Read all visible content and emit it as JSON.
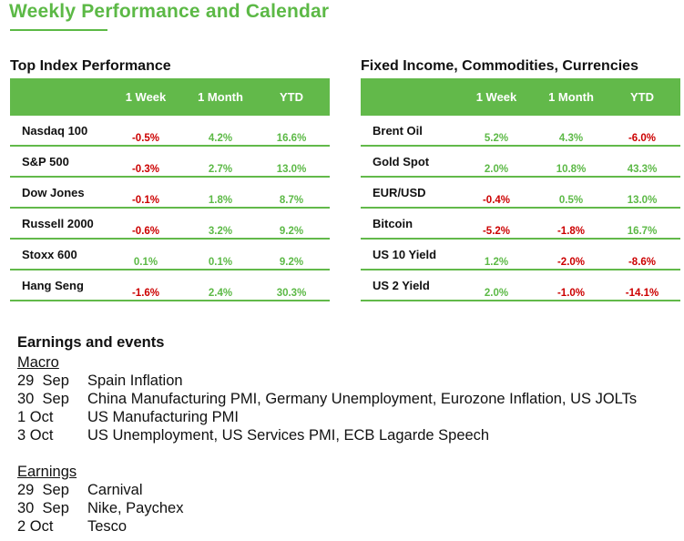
{
  "title": "Weekly Performance and Calendar",
  "colors": {
    "accent": "#62b94a",
    "positive": "#5cb946",
    "negative": "#cc0000"
  },
  "index_table": {
    "heading": "Top Index Performance",
    "columns": [
      "1 Week",
      "1 Month",
      "YTD"
    ],
    "rows": [
      {
        "name": "Nasdaq 100",
        "values": [
          "-0.5%",
          "4.2%",
          "16.6%"
        ]
      },
      {
        "name": "S&P 500",
        "values": [
          "-0.3%",
          "2.7%",
          "13.0%"
        ]
      },
      {
        "name": "Dow Jones",
        "values": [
          "-0.1%",
          "1.8%",
          "8.7%"
        ]
      },
      {
        "name": "Russell 2000",
        "values": [
          "-0.6%",
          "3.2%",
          "9.2%"
        ]
      },
      {
        "name": "Stoxx 600",
        "values": [
          "0.1%",
          "0.1%",
          "9.2%"
        ]
      },
      {
        "name": "Hang Seng",
        "values": [
          "-1.6%",
          "2.4%",
          "30.3%"
        ]
      }
    ]
  },
  "ficc_table": {
    "heading": "Fixed Income, Commodities, Currencies",
    "columns": [
      "1 Week",
      "1 Month",
      "YTD"
    ],
    "rows": [
      {
        "name": "Brent Oil",
        "values": [
          "5.2%",
          "4.3%",
          "-6.0%"
        ]
      },
      {
        "name": "Gold Spot",
        "values": [
          "2.0%",
          "10.8%",
          "43.3%"
        ]
      },
      {
        "name": "EUR/USD",
        "values": [
          "-0.4%",
          "0.5%",
          "13.0%"
        ]
      },
      {
        "name": "Bitcoin",
        "values": [
          "-5.2%",
          "-1.8%",
          "16.7%"
        ]
      },
      {
        "name": "US 10 Yield",
        "values": [
          "1.2%",
          "-2.0%",
          "-8.6%"
        ]
      },
      {
        "name": "US 2 Yield",
        "values": [
          "2.0%",
          "-1.0%",
          "-14.1%"
        ]
      }
    ]
  },
  "calendar": {
    "heading": "Earnings and events",
    "sections": [
      {
        "label": "Macro",
        "items": [
          {
            "date": "29  Sep",
            "event": "Spain Inflation"
          },
          {
            "date": "30  Sep",
            "event": "China Manufacturing PMI, Germany Unemployment, Eurozone Inflation, US JOLTs"
          },
          {
            "date": "1 Oct",
            "event": "US Manufacturing PMI"
          },
          {
            "date": "3 Oct",
            "event": "US Unemployment, US Services PMI, ECB Lagarde Speech"
          }
        ]
      },
      {
        "label": "Earnings",
        "items": [
          {
            "date": "29  Sep",
            "event": "Carnival"
          },
          {
            "date": "30  Sep",
            "event": "Nike, Paychex"
          },
          {
            "date": "2 Oct",
            "event": "Tesco"
          }
        ]
      }
    ]
  }
}
